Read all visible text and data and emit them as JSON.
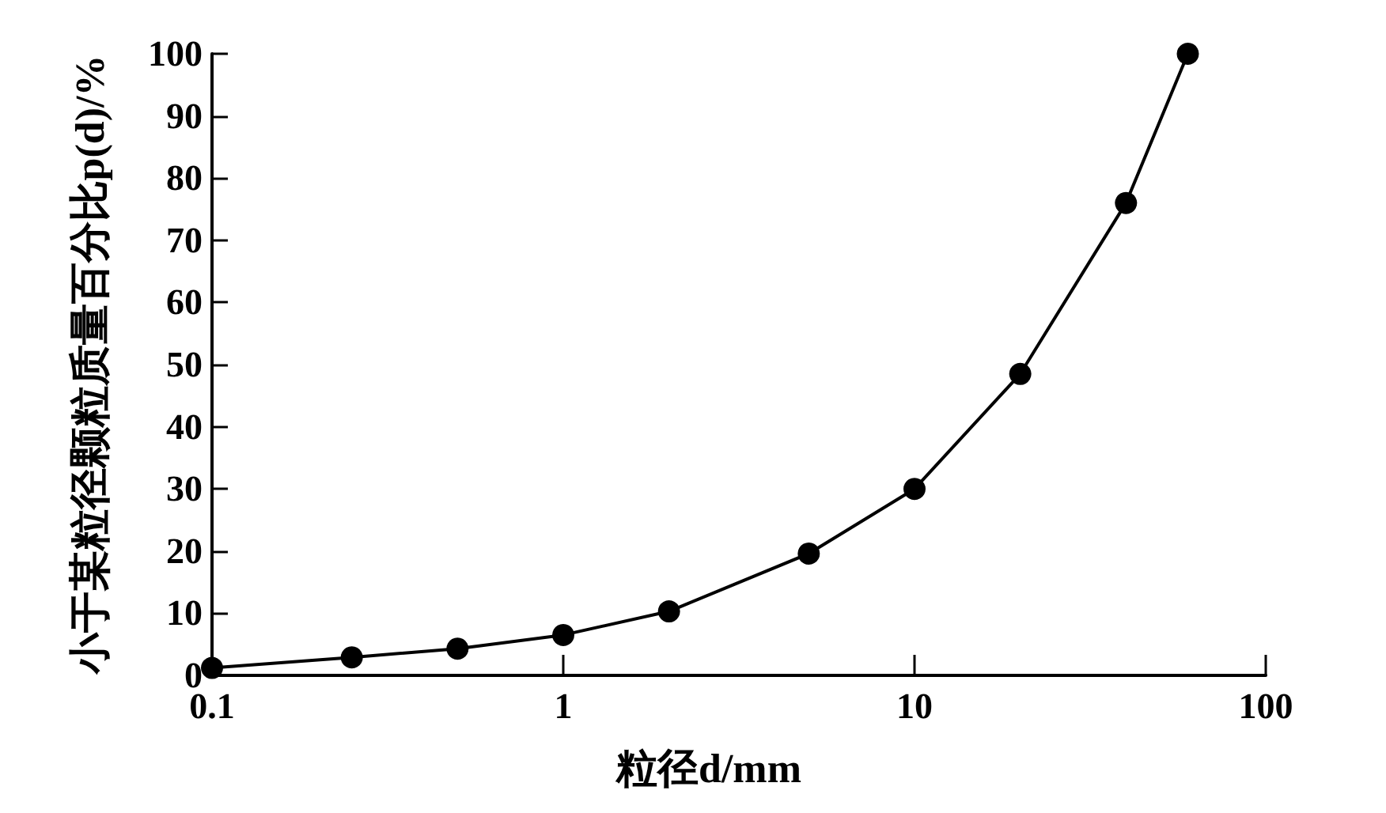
{
  "chart_data": {
    "type": "line",
    "xlabel": "粒径d/mm",
    "ylabel": "小于某粒径颗粒质量百分比p(d)/%",
    "x": [
      0.1,
      0.25,
      0.5,
      1,
      2,
      5,
      10,
      20,
      40,
      60
    ],
    "series": [
      {
        "color": "#000000",
        "values": [
          1.2,
          2.9,
          4.3,
          6.5,
          10.3,
          19.6,
          30,
          48.5,
          76,
          100
        ]
      }
    ],
    "log": "x",
    "xlim": [
      0.1,
      100
    ],
    "xticks": [
      0.1,
      1,
      10,
      100
    ],
    "ylim": [
      0,
      100
    ],
    "yticks": [
      0,
      10,
      20,
      30,
      40,
      50,
      60,
      70,
      80,
      90,
      100
    ],
    "marker": "circle",
    "line_style": "solid"
  }
}
